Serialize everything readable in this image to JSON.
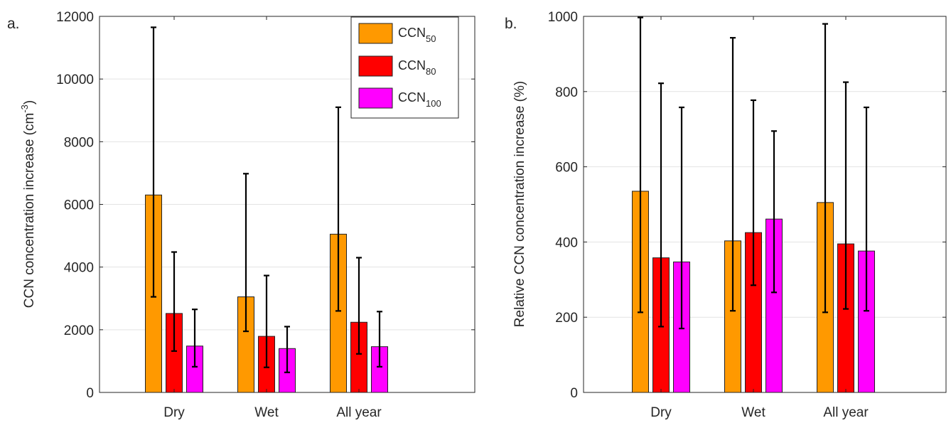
{
  "chart_data": [
    {
      "panel_label": "a.",
      "type": "bar",
      "categories": [
        "Dry",
        "Wet",
        "All year"
      ],
      "ylabel": "CCN concentration increase (cm",
      "ylabel_superscript": "-3",
      "ylabel_suffix": ")",
      "ylim": [
        0,
        12000
      ],
      "yticks": [
        0,
        2000,
        4000,
        6000,
        8000,
        10000,
        12000
      ],
      "grid": "horizontal",
      "legend_position": "top-right",
      "series": [
        {
          "name": "CCN",
          "subscript": "50",
          "color": "#FF9900",
          "values": [
            6300,
            3050,
            5050
          ],
          "err_low": [
            3050,
            1950,
            2600
          ],
          "err_high": [
            11650,
            6980,
            9100
          ]
        },
        {
          "name": "CCN",
          "subscript": "80",
          "color": "#FF0000",
          "values": [
            2520,
            1790,
            2240
          ],
          "err_low": [
            1320,
            800,
            1230
          ],
          "err_high": [
            4480,
            3730,
            4300
          ]
        },
        {
          "name": "CCN",
          "subscript": "100",
          "color": "#FF00FF",
          "values": [
            1480,
            1400,
            1460
          ],
          "err_low": [
            820,
            640,
            820
          ],
          "err_high": [
            2650,
            2100,
            2580
          ]
        }
      ]
    },
    {
      "panel_label": "b.",
      "type": "bar",
      "categories": [
        "Dry",
        "Wet",
        "All year"
      ],
      "ylabel": "Relative CCN concentration increase (%)",
      "ylim": [
        0,
        1000
      ],
      "yticks": [
        0,
        200,
        400,
        600,
        800,
        1000
      ],
      "grid": "horizontal",
      "series": [
        {
          "name": "CCN50",
          "color": "#FF9900",
          "values": [
            535,
            403,
            505
          ],
          "err_low": [
            213,
            217,
            213
          ],
          "err_high": [
            997,
            943,
            980
          ]
        },
        {
          "name": "CCN80",
          "color": "#FF0000",
          "values": [
            358,
            425,
            395
          ],
          "err_low": [
            175,
            285,
            222
          ],
          "err_high": [
            822,
            777,
            825
          ]
        },
        {
          "name": "CCN100",
          "color": "#FF00FF",
          "values": [
            347,
            461,
            376
          ],
          "err_low": [
            170,
            266,
            217
          ],
          "err_high": [
            758,
            695,
            758
          ]
        }
      ]
    }
  ]
}
